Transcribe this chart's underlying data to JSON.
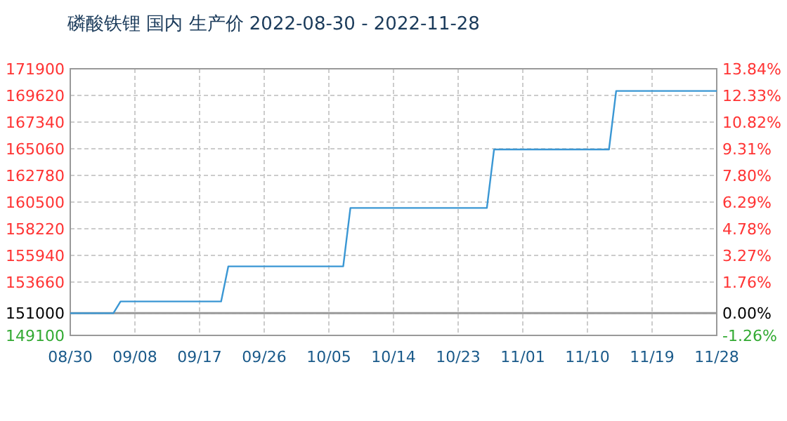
{
  "chart_data": {
    "type": "line",
    "title": "磷酸铁锂 国内 生产价 2022-08-30 - 2022-11-28",
    "x": [
      "2022-08-30",
      "2022-09-05",
      "2022-09-06",
      "2022-09-20",
      "2022-09-21",
      "2022-10-07",
      "2022-10-08",
      "2022-10-27",
      "2022-10-28",
      "2022-11-13",
      "2022-11-14",
      "2022-11-28"
    ],
    "series": [
      {
        "color": "#3a97d4",
        "values": [
          151000,
          151000,
          152000,
          152000,
          155000,
          155000,
          160000,
          160000,
          165000,
          165000,
          170000,
          170000
        ]
      }
    ],
    "xlim": [
      "2022-08-30",
      "2022-11-28"
    ],
    "xticks": [
      {
        "value": "2022-08-30",
        "label": "08/30"
      },
      {
        "value": "2022-09-08",
        "label": "09/08"
      },
      {
        "value": "2022-09-17",
        "label": "09/17"
      },
      {
        "value": "2022-09-26",
        "label": "09/26"
      },
      {
        "value": "2022-10-05",
        "label": "10/05"
      },
      {
        "value": "2022-10-14",
        "label": "10/14"
      },
      {
        "value": "2022-10-23",
        "label": "10/23"
      },
      {
        "value": "2022-11-01",
        "label": "11/01"
      },
      {
        "value": "2022-11-10",
        "label": "11/10"
      },
      {
        "value": "2022-11-19",
        "label": "11/19"
      },
      {
        "value": "2022-11-28",
        "label": "11/28"
      }
    ],
    "ylim": [
      149100,
      171900
    ],
    "yticks": [
      149100,
      151000,
      153660,
      155940,
      158220,
      160500,
      162780,
      165060,
      167340,
      169620,
      171900
    ],
    "y2lim": [
      -1.26,
      13.84
    ],
    "y2ticks": [
      {
        "value": -1.26,
        "label": "-1.26%"
      },
      {
        "value": 0,
        "label": "0.00%"
      },
      {
        "value": 1.76,
        "label": "1.76%"
      },
      {
        "value": 3.27,
        "label": "3.27%"
      },
      {
        "value": 4.78,
        "label": "4.78%"
      },
      {
        "value": 6.29,
        "label": "6.29%"
      },
      {
        "value": 7.8,
        "label": "7.80%"
      },
      {
        "value": 9.31,
        "label": "9.31%"
      },
      {
        "value": 10.82,
        "label": "10.82%"
      },
      {
        "value": 12.33,
        "label": "12.33%"
      },
      {
        "value": 13.84,
        "label": "13.84%"
      }
    ],
    "ref_lines": [
      {
        "axis": "y",
        "value": 151000,
        "color": "#999999"
      }
    ],
    "grid": true,
    "line_style": "solid"
  }
}
